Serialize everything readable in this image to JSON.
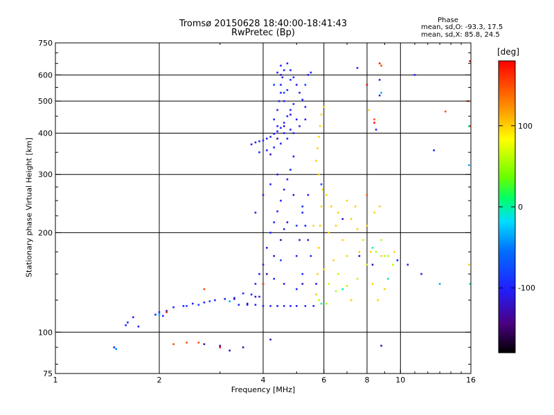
{
  "header": {
    "title_line1": "Tromsø 20150628 18:40:00-18:41:43",
    "title_line2": "RwPretec (Bp)",
    "phase_heading": "Phase",
    "phase_o": "mean, sd,O: -93.3, 17.5",
    "phase_x": "mean, sd,X: 85.8, 24.5"
  },
  "chart_data": {
    "type": "scatter",
    "title": "Tromsø 20150628 18:40:00-18:41:43",
    "subtitle": "RwPretec (Bp)",
    "xlabel": "Frequency [MHz]",
    "ylabel": "Stationary phase Virtual Height [km]",
    "x_scale": "log",
    "y_scale": "log",
    "xlim": [
      1,
      16
    ],
    "ylim": [
      75,
      750
    ],
    "x_ticks": [
      1,
      2,
      4,
      6,
      8,
      10,
      16
    ],
    "x_tick_labels": [
      "1",
      "2",
      "4",
      "6",
      "8",
      "10",
      "16"
    ],
    "y_ticks": [
      75,
      100,
      200,
      300,
      400,
      500,
      600,
      750
    ],
    "y_tick_labels": [
      "75",
      "100",
      "200",
      "300",
      "400",
      "500",
      "600",
      "750"
    ],
    "grid": true,
    "colorbar": {
      "label": "[deg]",
      "range": [
        -180,
        180
      ],
      "tick_labels": [
        "100",
        "0",
        "-100"
      ],
      "tick_values": [
        100,
        0,
        -100
      ]
    },
    "series": [
      {
        "phase_deg": -100,
        "points": [
          [
            1.48,
            90
          ],
          [
            1.5,
            89
          ],
          [
            1.6,
            105
          ],
          [
            1.62,
            107
          ],
          [
            1.68,
            111
          ],
          [
            1.74,
            104
          ],
          [
            1.95,
            113
          ],
          [
            2.0,
            115
          ],
          [
            2.05,
            112
          ],
          [
            2.1,
            116
          ],
          [
            2.2,
            119
          ],
          [
            2.35,
            120
          ],
          [
            2.5,
            122
          ],
          [
            2.7,
            123
          ],
          [
            2.9,
            125
          ],
          [
            3.1,
            126
          ],
          [
            3.3,
            127
          ],
          [
            3.4,
            121
          ],
          [
            3.6,
            121
          ],
          [
            3.8,
            121
          ],
          [
            4.0,
            120
          ],
          [
            4.2,
            120
          ],
          [
            4.4,
            120
          ],
          [
            4.6,
            120
          ],
          [
            4.8,
            120
          ],
          [
            5.0,
            120
          ],
          [
            5.3,
            120
          ],
          [
            5.6,
            120
          ],
          [
            3.5,
            131
          ],
          [
            3.7,
            130
          ],
          [
            3.9,
            128
          ],
          [
            3.8,
            140
          ],
          [
            4.0,
            160
          ],
          [
            4.1,
            180
          ],
          [
            4.2,
            200
          ],
          [
            4.3,
            215
          ],
          [
            4.4,
            232
          ],
          [
            4.5,
            250
          ],
          [
            4.6,
            270
          ],
          [
            4.7,
            290
          ],
          [
            4.8,
            310
          ],
          [
            4.9,
            340
          ],
          [
            3.9,
            150
          ],
          [
            4.3,
            145
          ],
          [
            4.6,
            140
          ],
          [
            5.0,
            135
          ],
          [
            5.2,
            150
          ],
          [
            5.0,
            170
          ],
          [
            5.1,
            190
          ],
          [
            5.3,
            210
          ],
          [
            5.2,
            240
          ],
          [
            5.4,
            260
          ],
          [
            3.8,
            230
          ],
          [
            4.0,
            260
          ],
          [
            4.2,
            280
          ],
          [
            4.4,
            300
          ],
          [
            4.6,
            205
          ],
          [
            5.2,
            230
          ],
          [
            5.7,
            140
          ],
          [
            5.5,
            170
          ],
          [
            3.7,
            370
          ],
          [
            3.8,
            375
          ],
          [
            3.9,
            378
          ],
          [
            4.0,
            380
          ],
          [
            4.1,
            385
          ],
          [
            4.2,
            390
          ],
          [
            4.3,
            398
          ],
          [
            4.4,
            405
          ],
          [
            4.5,
            415
          ],
          [
            4.6,
            430
          ],
          [
            4.7,
            450
          ],
          [
            4.8,
            470
          ],
          [
            4.9,
            490
          ],
          [
            3.9,
            350
          ],
          [
            4.1,
            355
          ],
          [
            4.3,
            362
          ],
          [
            4.5,
            372
          ],
          [
            4.7,
            385
          ],
          [
            4.9,
            400
          ],
          [
            5.1,
            420
          ],
          [
            5.3,
            440
          ],
          [
            4.3,
            440
          ],
          [
            4.4,
            470
          ],
          [
            4.45,
            500
          ],
          [
            4.5,
            530
          ],
          [
            4.5,
            560
          ],
          [
            4.55,
            590
          ],
          [
            4.6,
            620
          ],
          [
            4.7,
            650
          ],
          [
            4.8,
            620
          ],
          [
            4.9,
            590
          ],
          [
            5.0,
            560
          ],
          [
            5.1,
            530
          ],
          [
            5.2,
            505
          ],
          [
            5.3,
            480
          ],
          [
            4.4,
            420
          ],
          [
            4.6,
            400
          ],
          [
            4.8,
            410
          ],
          [
            5.0,
            440
          ],
          [
            4.6,
            500
          ],
          [
            4.7,
            540
          ],
          [
            4.8,
            580
          ],
          [
            4.4,
            610
          ],
          [
            4.5,
            640
          ],
          [
            5.4,
            600
          ],
          [
            5.5,
            610
          ],
          [
            8.7,
            520
          ],
          [
            8.7,
            580
          ],
          [
            11.0,
            600
          ],
          [
            12.5,
            355
          ],
          [
            9.8,
            165
          ],
          [
            10.5,
            160
          ],
          [
            11.5,
            150
          ],
          [
            7.5,
            630
          ],
          [
            8.5,
            410
          ]
        ]
      },
      {
        "phase_deg": -125,
        "points": [
          [
            3.3,
            126
          ],
          [
            3.6,
            122
          ],
          [
            3.8,
            128
          ],
          [
            4.1,
            150
          ],
          [
            4.3,
            170
          ],
          [
            4.5,
            190
          ],
          [
            4.7,
            215
          ],
          [
            4.9,
            260
          ],
          [
            4.2,
            345
          ],
          [
            4.4,
            385
          ],
          [
            4.6,
            420
          ],
          [
            4.8,
            455
          ],
          [
            4.5,
            600
          ],
          [
            5.2,
            140
          ],
          [
            5.4,
            190
          ],
          [
            6.8,
            220
          ],
          [
            7.6,
            170
          ],
          [
            8.3,
            160
          ],
          [
            2.7,
            92
          ],
          [
            3.0,
            91
          ],
          [
            3.5,
            90
          ],
          [
            4.2,
            95
          ],
          [
            8.8,
            91
          ],
          [
            3.2,
            88
          ]
        ]
      },
      {
        "phase_deg": -80,
        "points": [
          [
            2.4,
            120
          ],
          [
            2.6,
            121
          ],
          [
            2.8,
            124
          ],
          [
            4.0,
            140
          ],
          [
            4.5,
            165
          ],
          [
            5.0,
            210
          ],
          [
            4.3,
            560
          ],
          [
            4.6,
            530
          ],
          [
            5.3,
            560
          ],
          [
            5.9,
            280
          ]
        ]
      },
      {
        "phase_deg": -35,
        "points": [
          [
            1.5,
            89
          ],
          [
            2.0,
            113
          ],
          [
            3.2,
            124
          ],
          [
            8.8,
            530
          ],
          [
            13.0,
            140
          ],
          [
            15.8,
            320
          ]
        ]
      },
      {
        "phase_deg": 0,
        "points": [
          [
            5.9,
            122
          ],
          [
            6.8,
            135
          ],
          [
            8.3,
            180
          ],
          [
            9.2,
            145
          ],
          [
            15.9,
            140
          ],
          [
            15.8,
            420
          ]
        ]
      },
      {
        "phase_deg": 60,
        "points": [
          [
            5.8,
            125
          ],
          [
            6.1,
            122
          ],
          [
            6.5,
            133
          ],
          [
            7.0,
            138
          ],
          [
            7.5,
            145
          ],
          [
            8.0,
            160
          ],
          [
            8.5,
            175
          ],
          [
            9.0,
            170
          ],
          [
            7.8,
            190
          ],
          [
            8.8,
            190
          ],
          [
            9.5,
            160
          ],
          [
            6.2,
            140
          ],
          [
            6.6,
            150
          ],
          [
            9.2,
            170
          ]
        ]
      },
      {
        "phase_deg": 100,
        "points": [
          [
            5.7,
            130
          ],
          [
            5.75,
            150
          ],
          [
            5.8,
            180
          ],
          [
            5.85,
            210
          ],
          [
            5.9,
            240
          ],
          [
            5.95,
            270
          ],
          [
            5.8,
            300
          ],
          [
            5.7,
            330
          ],
          [
            5.75,
            360
          ],
          [
            5.8,
            390
          ],
          [
            5.85,
            420
          ],
          [
            5.9,
            455
          ],
          [
            6.0,
            480
          ],
          [
            6.1,
            260
          ],
          [
            6.3,
            240
          ],
          [
            6.6,
            230
          ],
          [
            7.0,
            250
          ],
          [
            7.4,
            240
          ],
          [
            6.2,
            200
          ],
          [
            6.5,
            210
          ],
          [
            6.8,
            190
          ],
          [
            7.2,
            220
          ],
          [
            7.5,
            205
          ],
          [
            8.0,
            210
          ],
          [
            8.4,
            230
          ],
          [
            8.7,
            240
          ],
          [
            5.6,
            210
          ],
          [
            6.0,
            155
          ],
          [
            6.4,
            165
          ],
          [
            7.0,
            170
          ],
          [
            7.6,
            175
          ],
          [
            8.2,
            175
          ],
          [
            8.8,
            170
          ],
          [
            9.6,
            175
          ],
          [
            7.2,
            125
          ],
          [
            8.3,
            140
          ],
          [
            8.6,
            125
          ],
          [
            9.0,
            135
          ],
          [
            8.1,
            470
          ],
          [
            15.8,
            160
          ]
        ]
      },
      {
        "phase_deg": 150,
        "points": [
          [
            2.7,
            135
          ],
          [
            4.0,
            140
          ],
          [
            2.2,
            92
          ],
          [
            2.4,
            93
          ],
          [
            2.6,
            93
          ],
          [
            8.4,
            440
          ],
          [
            8.8,
            640
          ],
          [
            15.7,
            500
          ],
          [
            15.9,
            420
          ],
          [
            8.0,
            260
          ],
          [
            13.5,
            465
          ]
        ]
      },
      {
        "phase_deg": 175,
        "points": [
          [
            2.1,
            115
          ],
          [
            3.0,
            90
          ],
          [
            8.4,
            430
          ],
          [
            8.7,
            650
          ],
          [
            15.9,
            660
          ],
          [
            8.0,
            560
          ]
        ]
      }
    ]
  }
}
